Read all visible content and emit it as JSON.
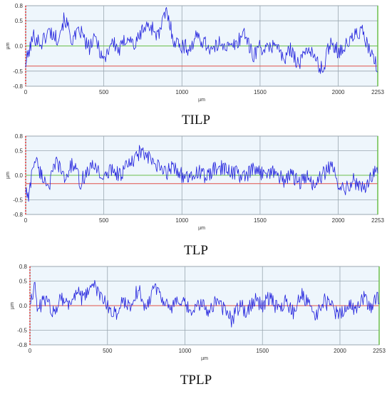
{
  "chart_data": [
    {
      "type": "line",
      "title": "TILP",
      "xlabel": "µm",
      "ylabel": "µm",
      "xlim": [
        0,
        2253
      ],
      "ylim": [
        -0.8,
        0.8
      ],
      "x_ticks": [
        "0",
        "500",
        "1000",
        "1500",
        "2000",
        "2253"
      ],
      "y_ticks": [
        "0.8",
        "0.5",
        "0.0",
        "-0.5",
        "-0.8"
      ],
      "reference_line_y": -0.4,
      "grid": true,
      "colors": {
        "profile": "#2222dd",
        "reference": "#e0524a",
        "zero": "#6abf4b",
        "background": "#eef6fc",
        "y_axis": "#e03030"
      },
      "series": [
        {
          "x": [
            0,
            50,
            100,
            150,
            200,
            250,
            300,
            350,
            400,
            450,
            500,
            550,
            600,
            650,
            700,
            750,
            800,
            850,
            900,
            950,
            1000,
            1050,
            1100,
            1150,
            1200,
            1250,
            1300,
            1350,
            1400,
            1450,
            1500,
            1550,
            1600,
            1650,
            1700,
            1750,
            1800,
            1850,
            1900,
            1950,
            2000,
            2050,
            2100,
            2150,
            2200,
            2253
          ],
          "y": [
            -0.35,
            0.2,
            0.05,
            0.3,
            0.15,
            0.55,
            0.1,
            0.3,
            -0.05,
            0.15,
            -0.3,
            0.1,
            -0.1,
            0.2,
            0.0,
            0.35,
            0.4,
            0.2,
            0.7,
            0.1,
            0.0,
            -0.05,
            0.2,
            0.05,
            -0.1,
            0.1,
            -0.05,
            0.05,
            0.3,
            -0.2,
            0.0,
            -0.1,
            0.1,
            -0.3,
            -0.05,
            -0.4,
            0.0,
            -0.25,
            -0.5,
            0.1,
            -0.1,
            0.0,
            0.2,
            0.3,
            -0.1,
            -0.45
          ]
        }
      ]
    },
    {
      "type": "line",
      "title": "TLP",
      "xlabel": "µm",
      "ylabel": "µm",
      "xlim": [
        0,
        2253
      ],
      "ylim": [
        -0.8,
        0.8
      ],
      "x_ticks": [
        "0",
        "500",
        "1000",
        "1500",
        "2000",
        "2253"
      ],
      "y_ticks": [
        "0.8",
        "0.5",
        "0.0",
        "-0.5",
        "-0.8"
      ],
      "reference_line_y": -0.17,
      "grid": true,
      "colors": {
        "profile": "#2222dd",
        "reference": "#e0524a",
        "zero": "#6abf4b",
        "background": "#eef6fc",
        "y_axis": "#e03030"
      },
      "series": [
        {
          "x": [
            0,
            20,
            40,
            60,
            100,
            150,
            200,
            250,
            300,
            350,
            400,
            450,
            500,
            550,
            600,
            650,
            700,
            730,
            800,
            850,
            900,
            950,
            1000,
            1050,
            1100,
            1150,
            1200,
            1250,
            1300,
            1350,
            1400,
            1450,
            1500,
            1550,
            1600,
            1650,
            1700,
            1750,
            1800,
            1850,
            1900,
            1950,
            2000,
            2050,
            2100,
            2150,
            2200,
            2253
          ],
          "y": [
            -0.3,
            -0.5,
            0.1,
            0.35,
            0.0,
            -0.2,
            0.3,
            -0.1,
            0.25,
            -0.15,
            0.1,
            0.2,
            -0.1,
            0.15,
            0.0,
            0.2,
            0.3,
            0.5,
            0.3,
            0.15,
            0.05,
            0.2,
            0.0,
            -0.1,
            0.1,
            -0.05,
            0.1,
            0.15,
            0.1,
            0.05,
            -0.05,
            0.1,
            0.05,
            0.1,
            0.05,
            -0.1,
            0.0,
            -0.15,
            -0.05,
            -0.2,
            0.0,
            0.2,
            -0.15,
            -0.25,
            -0.1,
            -0.3,
            -0.1,
            0.15
          ]
        }
      ]
    },
    {
      "type": "line",
      "title": "TPLP",
      "xlabel": "µm",
      "ylabel": "µm",
      "xlim": [
        0,
        2253
      ],
      "ylim": [
        -0.8,
        0.8
      ],
      "x_ticks": [
        "0",
        "500",
        "1000",
        "1500",
        "2000",
        "2253"
      ],
      "y_ticks": [
        "0.8",
        "0.5",
        "0.0",
        "-0.5",
        "-0.8"
      ],
      "reference_line_y": 0.0,
      "grid": true,
      "colors": {
        "profile": "#2222dd",
        "reference": "#e0524a",
        "zero": "#6abf4b",
        "background": "#eef6fc",
        "y_axis": "#e03030"
      },
      "series": [
        {
          "x": [
            0,
            30,
            50,
            100,
            150,
            200,
            250,
            300,
            350,
            400,
            450,
            500,
            550,
            600,
            650,
            700,
            750,
            800,
            850,
            900,
            950,
            1000,
            1050,
            1100,
            1150,
            1200,
            1250,
            1300,
            1350,
            1400,
            1450,
            1500,
            1550,
            1600,
            1650,
            1700,
            1750,
            1800,
            1850,
            1900,
            1950,
            2000,
            2050,
            2100,
            2150,
            2200,
            2253
          ],
          "y": [
            0.1,
            0.4,
            -0.1,
            0.15,
            -0.15,
            0.2,
            0.0,
            0.3,
            0.1,
            0.5,
            0.2,
            0.0,
            -0.2,
            0.1,
            0.0,
            0.35,
            -0.1,
            0.45,
            0.2,
            -0.1,
            0.1,
            0.0,
            -0.15,
            0.05,
            -0.1,
            0.1,
            -0.05,
            -0.3,
            0.0,
            -0.1,
            0.15,
            0.0,
            0.2,
            -0.1,
            0.1,
            -0.15,
            0.25,
            0.0,
            -0.2,
            0.1,
            -0.05,
            -0.2,
            0.05,
            -0.1,
            0.15,
            0.0,
            0.2
          ]
        }
      ]
    }
  ]
}
